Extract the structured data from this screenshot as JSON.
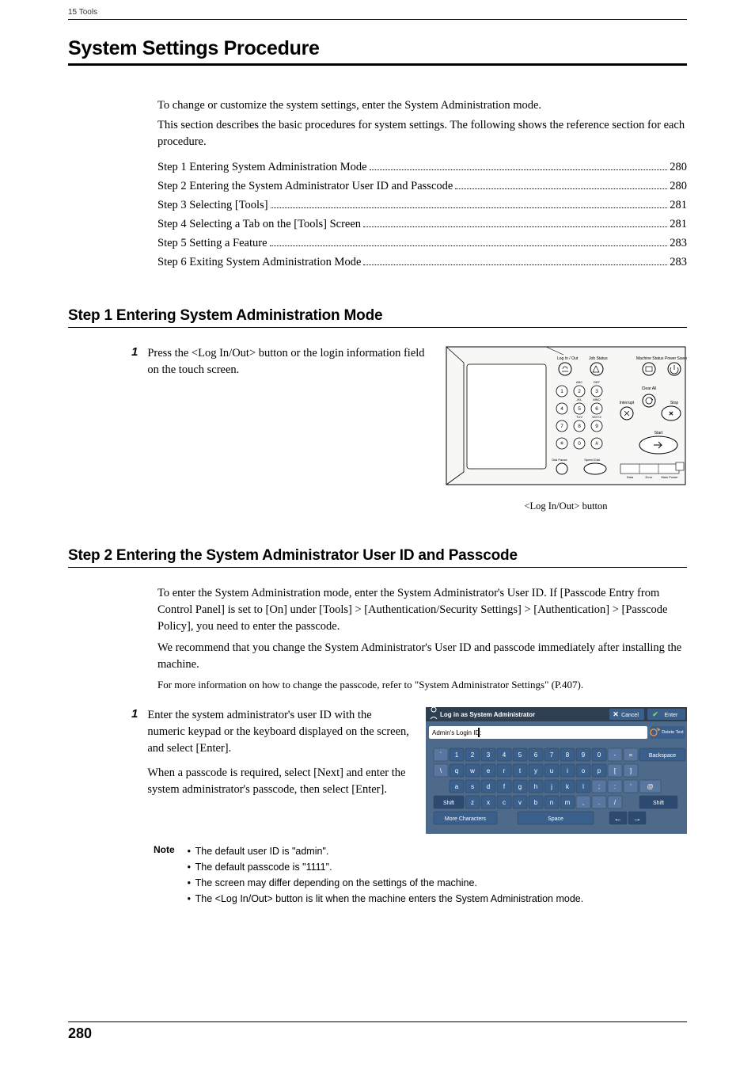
{
  "running_head": "15 Tools",
  "title": "System Settings Procedure",
  "intro1": "To change or customize the system settings, enter the System Administration mode.",
  "intro2": "This section describes the basic procedures for system settings. The following shows the reference section for each procedure.",
  "toc": [
    {
      "label": "Step 1 Entering System Administration Mode",
      "page": "280"
    },
    {
      "label": "Step 2 Entering the System Administrator User ID and Passcode",
      "page": "280"
    },
    {
      "label": "Step 3 Selecting [Tools]",
      "page": "281"
    },
    {
      "label": "Step 4 Selecting a Tab on the [Tools] Screen",
      "page": "281"
    },
    {
      "label": "Step 5 Setting a Feature",
      "page": "283"
    },
    {
      "label": "Step 6 Exiting System Administration Mode",
      "page": "283"
    }
  ],
  "step1": {
    "heading": "Step 1 Entering System Administration Mode",
    "item1_num": "1",
    "item1_text": "Press the <Log In/Out> button or the login information field on the touch screen.",
    "caption": "<Log In/Out> button",
    "panel": {
      "bg": "#f7f7f5",
      "inner_bg": "#ffffff",
      "stroke": "#000000",
      "text_color": "#000000",
      "labels": {
        "login": "Log In / Out",
        "job": "Job Status",
        "machine": "Machine Status",
        "power": "Power Saver",
        "abc": "ABC",
        "def": "DEF",
        "jkl": "JKL",
        "mno": "MNO",
        "tuv": "TUV",
        "wxyz": "WXYZ",
        "clear": "Clear All",
        "interrupt": "Interrupt",
        "stop": "Stop",
        "dial": "Dial Pause",
        "speed": "Speed Dial",
        "start": "Start",
        "data": "Data",
        "error": "Error",
        "main": "Main Power"
      }
    }
  },
  "step2": {
    "heading": "Step 2 Entering the System Administrator User ID and Passcode",
    "p1": "To enter the System Administration mode, enter the System Administrator's User ID. If [Passcode Entry from Control Panel] is set to [On] under [Tools] > [Authentication/Security Settings] > [Authentication] > [Passcode Policy], you need to enter the passcode.",
    "p2": "We recommend that you change the System Administrator's User ID and passcode immediately after installing the machine.",
    "p3": "For more information on how to change the passcode, refer to \"System Administrator Settings\" (P.407).",
    "item1_num": "1",
    "item1_text_a": "Enter the system administrator's user ID with the numeric keypad or the keyboard displayed on the screen, and select [Enter].",
    "item1_text_b": "When a passcode is required, select [Next] and enter the system administrator's passcode, then select [Enter].",
    "note_label": "Note",
    "notes": [
      "The default user ID is \"admin\".",
      "The default passcode is \"1111\".",
      "The screen may differ depending on the settings of the machine.",
      "The <Log In/Out> button is lit when the machine enters the System Administration mode."
    ],
    "kb": {
      "title": "Log in as System Administrator",
      "cancel": "Cancel",
      "enter": "Enter",
      "login_label": "Admin's Login ID:",
      "delete": "Delete Text",
      "backspace": "Backspace",
      "shift": "Shift",
      "more": "More Characters",
      "space": "Space",
      "row1": [
        "`",
        "1",
        "2",
        "3",
        "4",
        "5",
        "6",
        "7",
        "8",
        "9",
        "0",
        "-",
        "="
      ],
      "row2": [
        "\\",
        "q",
        "w",
        "e",
        "r",
        "t",
        "y",
        "u",
        "i",
        "o",
        "p",
        "[",
        "]"
      ],
      "row3": [
        "a",
        "s",
        "d",
        "f",
        "g",
        "h",
        "j",
        "k",
        "l",
        ";",
        ":"
      ],
      "row4": [
        "z",
        "x",
        "c",
        "v",
        "b",
        "n",
        "m",
        ",",
        ".",
        "/"
      ],
      "col_header": "#4d6a8a",
      "col_header_dark": "#2f3f52",
      "col_key_blue": "#3a5f8a",
      "col_key_lighter": "#5777a0",
      "col_key_darkblue": "#2c4a70",
      "col_input_bg": "#e8ecef",
      "col_title_text": "#ffffff",
      "col_arrow_dark": "#9aa4af",
      "col_text": "#ffffff",
      "col_check": "#7ed957",
      "col_x": "#ffffff",
      "col_undo": "#ff9b3d"
    }
  },
  "page_number": "280"
}
